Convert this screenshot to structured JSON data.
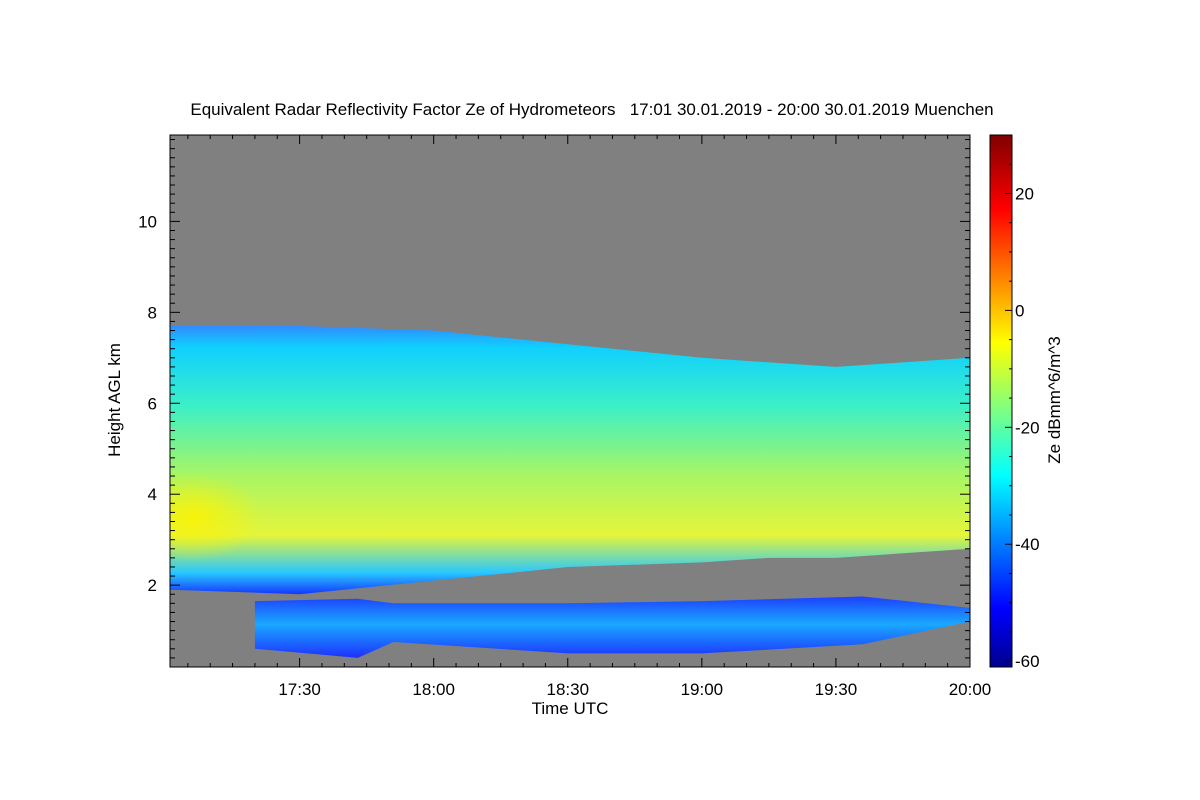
{
  "chart_data": {
    "type": "heatmap",
    "title": "Equivalent Radar Reflectivity Factor Ze of Hydrometeors   17:01 30.01.2019 - 20:00 30.01.2019 Muenchen",
    "xlabel": "Time UTC",
    "ylabel": "Height AGL km",
    "colorbar_label": "Ze dBmm^6/m^3",
    "x_range": [
      "17:01",
      "20:00"
    ],
    "ylim": [
      0.2,
      11.9
    ],
    "x_ticks": [
      "17:30",
      "18:00",
      "18:30",
      "19:00",
      "19:30",
      "20:00"
    ],
    "y_ticks": [
      2,
      4,
      6,
      8,
      10
    ],
    "colorbar_range": [
      -61,
      30
    ],
    "colorbar_ticks": [
      20,
      0,
      -20,
      -40,
      -60
    ],
    "colormap": "jet",
    "no_signal_color": "#808080",
    "grid": false,
    "layers": [
      {
        "name": "upper cloud layer",
        "time": [
          "17:01",
          "17:30",
          "18:00",
          "18:30",
          "19:00",
          "19:15",
          "19:30",
          "19:45",
          "20:00"
        ],
        "top_km": [
          7.7,
          7.7,
          7.6,
          7.3,
          7.0,
          6.9,
          6.8,
          6.9,
          7.0
        ],
        "base_km": [
          1.9,
          1.8,
          2.1,
          2.4,
          2.5,
          2.6,
          2.6,
          2.7,
          2.8
        ],
        "peak_ze_dbz": -5,
        "edge_ze_dbz": -38
      },
      {
        "name": "lower cloud layer",
        "time": [
          "17:20",
          "17:43",
          "17:51",
          "18:30",
          "19:00",
          "19:36",
          "20:00"
        ],
        "top_km": [
          1.65,
          1.7,
          1.6,
          1.6,
          1.65,
          1.75,
          1.5
        ],
        "base_km": [
          0.6,
          0.4,
          0.75,
          0.5,
          0.5,
          0.7,
          1.2
        ],
        "ze_dbz": [
          -45,
          -30
        ]
      }
    ]
  }
}
